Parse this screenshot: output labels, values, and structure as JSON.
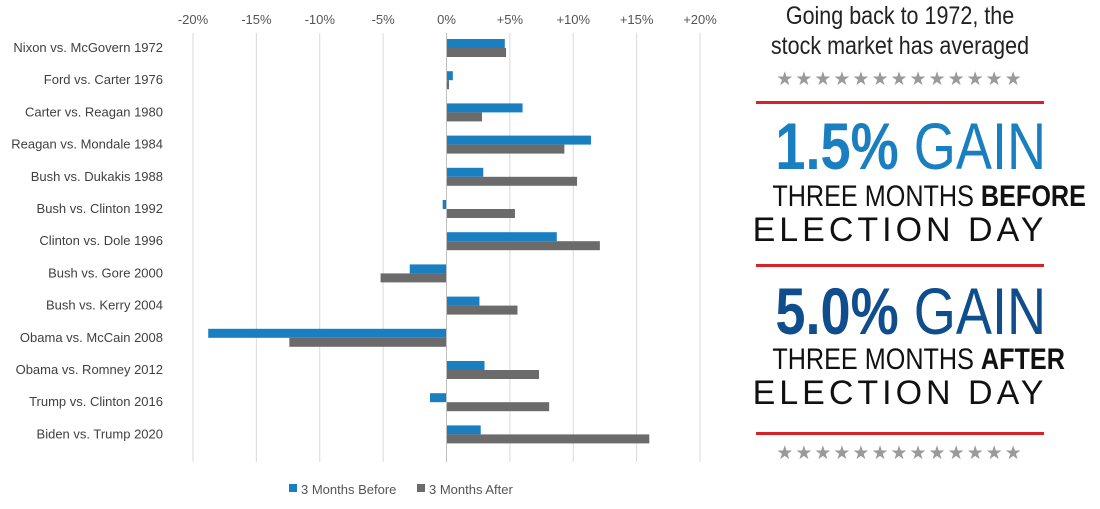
{
  "chart_data": {
    "type": "bar",
    "orientation": "horizontal",
    "categories": [
      "Nixon vs. McGovern 1972",
      "Ford vs. Carter 1976",
      "Carter vs. Reagan 1980",
      "Reagan vs. Mondale 1984",
      "Bush vs. Dukakis 1988",
      "Bush vs. Clinton 1992",
      "Clinton vs. Dole 1996",
      "Bush vs. Gore 2000",
      "Bush vs. Kerry 2004",
      "Obama vs. McCain 2008",
      "Obama vs. Romney 2012",
      "Trump vs. Clinton 2016",
      "Biden vs. Trump 2020"
    ],
    "series": [
      {
        "name": "3 Months Before",
        "color": "#1a7fc1",
        "values": [
          4.6,
          0.5,
          6.0,
          11.4,
          2.9,
          -0.3,
          8.7,
          -2.9,
          2.6,
          -18.8,
          3.0,
          -1.3,
          2.7
        ]
      },
      {
        "name": "3 Months After",
        "color": "#6b6b6b",
        "values": [
          4.7,
          0.2,
          2.8,
          9.3,
          10.3,
          5.4,
          12.1,
          -5.2,
          5.6,
          -12.4,
          7.3,
          8.1,
          16.0
        ]
      }
    ],
    "x_ticks": [
      "-20%",
      "-15%",
      "-10%",
      "-5%",
      "0%",
      "+5%",
      "+10%",
      "+15%",
      "+20%"
    ],
    "xlim": [
      -20,
      20
    ],
    "grid": true,
    "legend": "bottom"
  },
  "panel": {
    "intro_line1": "Going back to 1972, the",
    "intro_line2": "stock market has averaged",
    "stars": "★★★★★★★★★★★★★",
    "gain1": {
      "value": "1.5%",
      "word": "GAIN",
      "color": "#1a7fc1"
    },
    "before_line1_pre": "THREE MONTHS ",
    "before_line1_bold": "BEFORE",
    "before_line2": "ELECTION DAY",
    "gain2": {
      "value": "5.0%",
      "word": "GAIN",
      "color": "#0f4d8c"
    },
    "after_line1_pre": "THREE MONTHS ",
    "after_line1_bold": "AFTER",
    "after_line2": "ELECTION DAY",
    "rule_color": "#d7222a",
    "star_color": "#9a9a9a"
  }
}
